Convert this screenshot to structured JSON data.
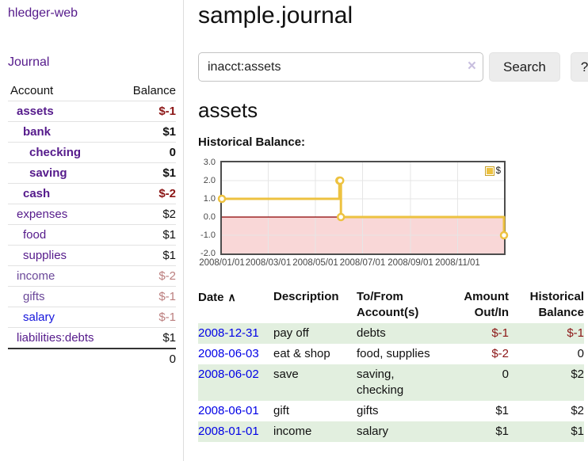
{
  "sidebar": {
    "app_title": "hledger-web",
    "nav": [
      {
        "label": "Journal"
      }
    ],
    "accounts_table": {
      "headers": [
        "Account",
        "Balance"
      ],
      "rows": [
        {
          "account": "assets",
          "depth": 1,
          "balance": "$-1",
          "emphasis": true,
          "link_tone": "purple",
          "balance_tone": "neg"
        },
        {
          "account": "bank",
          "depth": 2,
          "balance": "$1",
          "emphasis": true,
          "link_tone": "purple",
          "balance_tone": "plain"
        },
        {
          "account": "checking",
          "depth": 3,
          "balance": "0",
          "emphasis": true,
          "link_tone": "purple",
          "balance_tone": "plain"
        },
        {
          "account": "saving",
          "depth": 3,
          "balance": "$1",
          "emphasis": true,
          "link_tone": "purple",
          "balance_tone": "plain"
        },
        {
          "account": "cash",
          "depth": 2,
          "balance": "$-2",
          "emphasis": true,
          "link_tone": "purple",
          "balance_tone": "neg"
        },
        {
          "account": "expenses",
          "depth": 1,
          "balance": "$2",
          "emphasis": false,
          "link_tone": "purple",
          "balance_tone": "plain"
        },
        {
          "account": "food",
          "depth": 2,
          "balance": "$1",
          "emphasis": false,
          "link_tone": "purple",
          "balance_tone": "plain"
        },
        {
          "account": "supplies",
          "depth": 2,
          "balance": "$1",
          "emphasis": false,
          "link_tone": "purple",
          "balance_tone": "plain"
        },
        {
          "account": "income",
          "depth": 1,
          "balance": "$-2",
          "emphasis": false,
          "link_tone": "purple-dim",
          "balance_tone": "neg-dim"
        },
        {
          "account": "gifts",
          "depth": 2,
          "balance": "$-1",
          "emphasis": false,
          "link_tone": "purple-dim",
          "balance_tone": "neg-dim"
        },
        {
          "account": "salary",
          "depth": 2,
          "balance": "$-1",
          "emphasis": false,
          "link_tone": "blue",
          "balance_tone": "neg-dim"
        },
        {
          "account": "liabilities:debts",
          "depth": 1,
          "balance": "$1",
          "emphasis": false,
          "link_tone": "purple",
          "balance_tone": "plain"
        }
      ],
      "total": "0"
    }
  },
  "header": {
    "title": "sample.journal"
  },
  "search": {
    "query": "inacct:assets",
    "clear_icon": "×",
    "search_label": "Search",
    "help_label": "?"
  },
  "account_page": {
    "heading": "assets",
    "chart_title": "Historical Balance:"
  },
  "chart_data": {
    "type": "line",
    "step": true,
    "title": "Historical Balance",
    "series": [
      {
        "name": "$",
        "color": "#edc240",
        "points": [
          {
            "x": "2008-01-01",
            "y": 1
          },
          {
            "x": "2008-06-01",
            "y": 2
          },
          {
            "x": "2008-06-02",
            "y": 2
          },
          {
            "x": "2008-06-03",
            "y": 0
          },
          {
            "x": "2008-12-31",
            "y": -1
          }
        ]
      }
    ],
    "xlim": [
      "2008-01-01",
      "2008-12-31"
    ],
    "ylim": [
      -2,
      3
    ],
    "yticks": [
      3.0,
      2.0,
      1.0,
      0.0,
      -1.0,
      -2.0
    ],
    "ytick_labels": [
      "3.0",
      "2.0",
      "1.0",
      "0.0",
      "-1.0",
      "-2.0"
    ],
    "xticks": [
      "2008-01-01",
      "2008-03-01",
      "2008-05-01",
      "2008-07-01",
      "2008-09-01",
      "2008-11-01"
    ],
    "xtick_labels": [
      "2008/01/01",
      "2008/03/01",
      "2008/05/01",
      "2008/07/01",
      "2008/09/01",
      "2008/11/01"
    ],
    "legend": {
      "label": "$",
      "position": "top-right"
    },
    "grid": true,
    "zero_line_color": "#8b0000",
    "negative_region_color": "#f9d7d7",
    "grid_color": "#e6e6e6"
  },
  "register_table": {
    "sort_icon": "∧",
    "headers": [
      {
        "label": "Date",
        "align": "left",
        "sortable": true
      },
      {
        "label": "Description",
        "align": "left",
        "sortable": false
      },
      {
        "label": "To/From Account(s)",
        "align": "left",
        "sortable": false
      },
      {
        "label": "Amount Out/In",
        "align": "right",
        "sortable": false
      },
      {
        "label": "Historical Balance",
        "align": "right",
        "sortable": false
      }
    ],
    "rows": [
      {
        "date": "2008-12-31",
        "description": "pay off",
        "accounts": "debts",
        "amount": "$-1",
        "amount_negative": true,
        "balance": "$-1",
        "balance_negative": true
      },
      {
        "date": "2008-06-03",
        "description": "eat & shop",
        "accounts": "food, supplies",
        "amount": "$-2",
        "amount_negative": true,
        "balance": "0",
        "balance_negative": false
      },
      {
        "date": "2008-06-02",
        "description": "save",
        "accounts": "saving, checking",
        "amount": "0",
        "amount_negative": false,
        "balance": "$2",
        "balance_negative": false
      },
      {
        "date": "2008-06-01",
        "description": "gift",
        "accounts": "gifts",
        "amount": "$1",
        "amount_negative": false,
        "balance": "$2",
        "balance_negative": false
      },
      {
        "date": "2008-01-01",
        "description": "income",
        "accounts": "salary",
        "amount": "$1",
        "amount_negative": false,
        "balance": "$1",
        "balance_negative": false
      }
    ]
  }
}
